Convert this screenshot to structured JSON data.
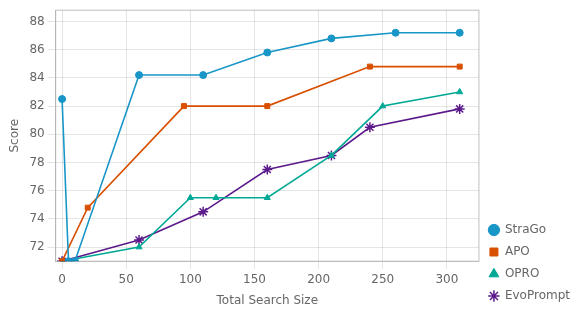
{
  "chart_data": {
    "type": "line",
    "xlabel": "Total Search Size",
    "ylabel": "Score",
    "xlim": [
      -5,
      325
    ],
    "ylim": [
      71.0,
      88.8
    ],
    "xticks": [
      0,
      50,
      100,
      150,
      200,
      250,
      300
    ],
    "yticks": [
      72,
      74,
      76,
      78,
      80,
      82,
      84,
      86,
      88
    ],
    "grid": true,
    "legend": "lower right",
    "series": [
      {
        "name": "StraGo",
        "color": "#1996c8",
        "marker": "circle",
        "x": [
          0,
          5,
          10,
          60,
          110,
          160,
          210,
          260,
          310
        ],
        "values": [
          82.5,
          71.0,
          71.0,
          84.2,
          84.2,
          85.8,
          86.8,
          87.2,
          87.2
        ]
      },
      {
        "name": "APO",
        "color": "#d94f00",
        "marker": "square",
        "x": [
          0,
          20,
          95,
          160,
          240,
          310
        ],
        "values": [
          71.0,
          74.8,
          82.0,
          82.0,
          84.8,
          84.8
        ]
      },
      {
        "name": "OPRO",
        "color": "#00a896",
        "marker": "triangle",
        "x": [
          0,
          60,
          100,
          120,
          160,
          210,
          250,
          310
        ],
        "values": [
          71.0,
          72.0,
          75.5,
          75.5,
          75.5,
          78.5,
          82.0,
          83.0
        ]
      },
      {
        "name": "EvoPrompt",
        "color": "#5c1a8a",
        "marker": "star",
        "x": [
          0,
          60,
          110,
          160,
          210,
          240,
          310
        ],
        "values": [
          71.0,
          72.5,
          74.5,
          77.5,
          78.5,
          80.5,
          81.8
        ]
      }
    ]
  }
}
